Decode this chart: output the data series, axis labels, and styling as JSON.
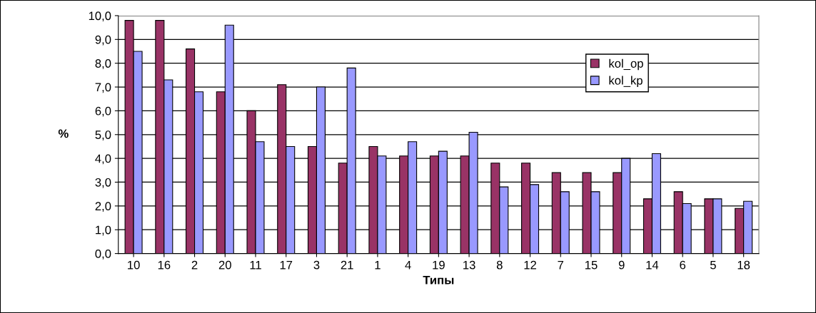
{
  "chart_data": {
    "type": "bar",
    "xlabel": "Типы",
    "ylabel": "%",
    "categories": [
      "10",
      "16",
      "2",
      "20",
      "11",
      "17",
      "3",
      "21",
      "1",
      "4",
      "19",
      "13",
      "8",
      "12",
      "7",
      "15",
      "9",
      "14",
      "6",
      "5",
      "18"
    ],
    "series": [
      {
        "name": "kol_op",
        "color": "#993366",
        "values": [
          9.8,
          9.8,
          8.6,
          6.8,
          6.0,
          7.1,
          4.5,
          3.8,
          4.5,
          4.1,
          4.1,
          4.1,
          3.8,
          3.8,
          3.4,
          3.4,
          3.4,
          2.3,
          2.6,
          2.3,
          1.9
        ]
      },
      {
        "name": "kol_kp",
        "color": "#9999ff",
        "values": [
          8.5,
          7.3,
          6.8,
          9.6,
          4.7,
          4.5,
          7.0,
          7.8,
          4.1,
          4.7,
          4.3,
          5.1,
          2.8,
          2.9,
          2.6,
          2.6,
          4.0,
          4.2,
          2.1,
          2.3,
          2.2
        ]
      }
    ],
    "ylim": [
      0,
      10
    ],
    "yticks": [
      {
        "value": 0,
        "label": "0,0"
      },
      {
        "value": 1,
        "label": "1,0"
      },
      {
        "value": 2,
        "label": "2,0"
      },
      {
        "value": 3,
        "label": "3,0"
      },
      {
        "value": 4,
        "label": "4,0"
      },
      {
        "value": 5,
        "label": "5,0"
      },
      {
        "value": 6,
        "label": "6,0"
      },
      {
        "value": 7,
        "label": "7,0"
      },
      {
        "value": 8,
        "label": "8,0"
      },
      {
        "value": 9,
        "label": "9,0"
      },
      {
        "value": 10,
        "label": "10,0"
      }
    ],
    "grid": "y",
    "legend": "top right"
  }
}
